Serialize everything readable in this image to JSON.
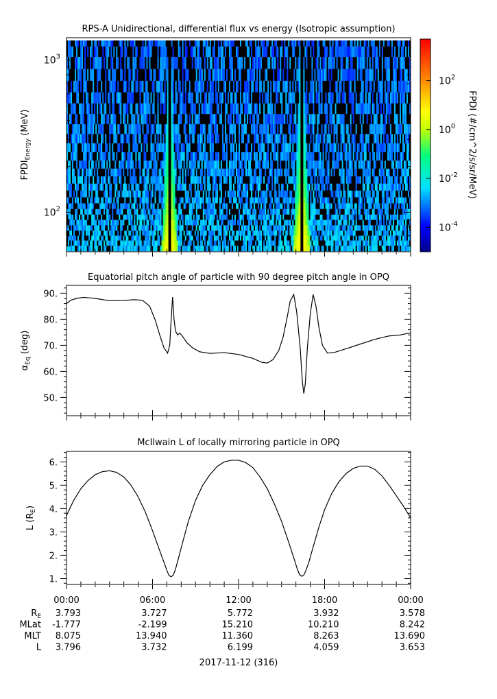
{
  "chart_data": [
    {
      "type": "heatmap",
      "title": "RPS-A Unidirectional, differential flux vs energy (Isotropic assumption)",
      "ylabel_main": "FPDI",
      "ylabel_sub": "Energy",
      "ylabel_unit": "(MeV)",
      "yscale": "log",
      "ylim": [
        55,
        1400
      ],
      "yticks": [
        {
          "value": 100,
          "base": "10",
          "exp": "2"
        },
        {
          "value": 1000,
          "base": "10",
          "exp": "3"
        }
      ],
      "energy_channels": [
        58,
        63,
        68,
        73,
        79,
        86,
        93,
        101,
        110,
        120,
        132,
        147,
        163,
        183,
        206,
        233,
        266,
        305,
        352,
        410,
        480,
        566,
        670,
        800,
        960,
        1150,
        1320
      ],
      "colorbar": {
        "label": "FPDI (#/cm^2/s/sr/MeV)",
        "scale": "log",
        "zlim": [
          -5,
          3.7
        ],
        "ticks": [
          {
            "value": -4,
            "base": "10",
            "exp": "-4"
          },
          {
            "value": -2,
            "base": "10",
            "exp": "-2"
          },
          {
            "value": 0,
            "base": "10",
            "exp": "0"
          },
          {
            "value": 2,
            "base": "10",
            "exp": "2"
          }
        ]
      },
      "peaks": [
        {
          "center_hours": 7.2,
          "width_hours": 0.5
        },
        {
          "center_hours": 16.4,
          "width_hours": 0.55
        }
      ],
      "xlim": [
        0,
        24
      ]
    },
    {
      "type": "line",
      "title": "Equatorial pitch angle of particle with 90 degree pitch angle in OPQ",
      "ylabel_base": "α",
      "ylabel_sub": "Eq",
      "ylabel_unit": "(deg)",
      "xlim": [
        0,
        24
      ],
      "ylim": [
        43,
        93
      ],
      "yticks": [
        50,
        60,
        70,
        80,
        90
      ],
      "ytick_labels": [
        "50.",
        "60.",
        "70.",
        "80.",
        "90."
      ],
      "x": [
        0,
        0.3,
        0.7,
        1.2,
        2,
        3,
        4,
        4.7,
        5.3,
        5.8,
        6.2,
        6.5,
        6.8,
        7.05,
        7.2,
        7.3,
        7.4,
        7.5,
        7.6,
        7.75,
        7.9,
        8.1,
        8.4,
        8.8,
        9.3,
        10,
        11,
        12,
        13,
        13.6,
        14,
        14.4,
        14.8,
        15.1,
        15.4,
        15.6,
        15.85,
        16.05,
        16.3,
        16.45,
        16.55,
        16.65,
        16.8,
        17,
        17.2,
        17.4,
        17.6,
        17.85,
        18.2,
        18.7,
        19.5,
        20.5,
        21.5,
        22.5,
        23.3,
        24
      ],
      "y": [
        86,
        87.3,
        88,
        88.4,
        88,
        87.1,
        87.2,
        87.5,
        87.3,
        85,
        79.5,
        74,
        69,
        67,
        70,
        80,
        88.5,
        80,
        75.5,
        74,
        74.7,
        73.4,
        71,
        69,
        67.5,
        66.9,
        67.2,
        66.5,
        65,
        63.5,
        63.2,
        64.5,
        68,
        73,
        81,
        87,
        89.5,
        83,
        69,
        56,
        51.5,
        55,
        69,
        82,
        89.5,
        85,
        77,
        70,
        67,
        67.3,
        68.7,
        70.5,
        72.3,
        73.6,
        74,
        74.8
      ]
    },
    {
      "type": "line",
      "title": "McIlwain L of locally mirroring particle in OPQ",
      "ylabel_base": "L (R",
      "ylabel_sub": "E",
      "ylabel_end": ")",
      "xlim": [
        0,
        24
      ],
      "ylim": [
        0.75,
        6.45
      ],
      "yticks": [
        1,
        2,
        3,
        4,
        5,
        6
      ],
      "ytick_labels": [
        "1.",
        "2.",
        "3.",
        "4.",
        "5.",
        "6."
      ],
      "x": [
        0,
        0.5,
        1,
        1.5,
        2,
        2.5,
        3,
        3.5,
        4,
        4.5,
        5,
        5.5,
        6,
        6.5,
        6.8,
        7,
        7.15,
        7.3,
        7.45,
        7.6,
        7.8,
        8.1,
        8.5,
        9,
        9.5,
        10,
        10.5,
        11,
        11.5,
        12,
        12.5,
        13,
        13.5,
        14,
        14.5,
        15,
        15.5,
        15.9,
        16.1,
        16.25,
        16.4,
        16.55,
        16.7,
        16.9,
        17.2,
        17.6,
        18,
        18.5,
        19,
        19.5,
        20,
        20.5,
        21,
        21.5,
        22,
        22.5,
        23,
        23.5,
        24
      ],
      "y": [
        3.7,
        4.35,
        4.85,
        5.2,
        5.45,
        5.58,
        5.62,
        5.55,
        5.35,
        5.0,
        4.5,
        3.85,
        3.05,
        2.2,
        1.7,
        1.35,
        1.13,
        1.08,
        1.15,
        1.4,
        1.85,
        2.55,
        3.45,
        4.35,
        5.0,
        5.45,
        5.8,
        6.0,
        6.07,
        6.07,
        5.97,
        5.75,
        5.35,
        4.85,
        4.2,
        3.45,
        2.55,
        1.8,
        1.4,
        1.18,
        1.1,
        1.15,
        1.35,
        1.7,
        2.35,
        3.2,
        3.95,
        4.65,
        5.15,
        5.5,
        5.72,
        5.82,
        5.82,
        5.68,
        5.4,
        5.0,
        4.55,
        4.1,
        3.6
      ]
    }
  ],
  "x_axis": {
    "tick_labels": [
      "00:00",
      "06:00",
      "12:00",
      "18:00",
      "00:00"
    ],
    "date_label": "2017-11-12 (316)"
  },
  "ephemeris": {
    "rows": [
      {
        "label_base": "R",
        "label_sub": "E",
        "values": [
          "3.793",
          "3.727",
          "5.772",
          "3.932",
          "3.578"
        ]
      },
      {
        "label_base": "MLat",
        "label_sub": "",
        "values": [
          "-1.777",
          "-2.199",
          "15.210",
          "10.210",
          "8.242"
        ]
      },
      {
        "label_base": "MLT",
        "label_sub": "",
        "values": [
          "8.075",
          "13.940",
          "11.360",
          "8.263",
          "13.690"
        ]
      },
      {
        "label_base": "L",
        "label_sub": "",
        "values": [
          "3.796",
          "3.732",
          "6.199",
          "4.059",
          "3.653"
        ]
      }
    ]
  }
}
